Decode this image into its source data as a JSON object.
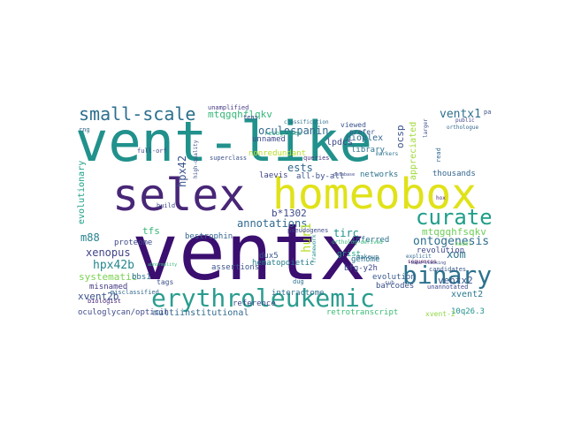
{
  "word_cloud": {
    "colormap": "viridis",
    "words": [
      {
        "text": "ventx",
        "color": "#3b0f70"
      },
      {
        "text": "vent-like",
        "color": "#21918c"
      },
      {
        "text": "homeobox",
        "color": "#e0e219"
      },
      {
        "text": "selex",
        "color": "#482677"
      },
      {
        "text": "erythroleukemic",
        "color": "#2a9d8f"
      },
      {
        "text": "binary",
        "color": "#2c728e"
      },
      {
        "text": "curated",
        "color": "#1f9e89"
      },
      {
        "text": "small-scale",
        "color": "#2c6f8e"
      },
      {
        "text": "ontogenesis",
        "color": "#2e6e8e"
      },
      {
        "text": "hpx42b",
        "color": "#24868e"
      },
      {
        "text": "ventx1",
        "color": "#2d708e"
      },
      {
        "text": "hpx42",
        "color": "#3b528b"
      },
      {
        "text": "mtqgqhflqkv",
        "color": "#35b779"
      },
      {
        "text": "mtqgqhfsqkv",
        "color": "#6ece58"
      },
      {
        "text": "oculospanin",
        "color": "#31688e"
      },
      {
        "text": "ests",
        "color": "#31688e"
      },
      {
        "text": "xenopus",
        "color": "#414487"
      },
      {
        "text": "annotations",
        "color": "#30698e"
      },
      {
        "text": "b*1302",
        "color": "#3e4a89"
      },
      {
        "text": "m88",
        "color": "#26828e"
      },
      {
        "text": "hur1",
        "color": "#b5de2b"
      },
      {
        "text": "tfs",
        "color": "#35b779"
      },
      {
        "text": "xom",
        "color": "#2c728e"
      },
      {
        "text": "ventx2",
        "color": "#38588c"
      },
      {
        "text": "systematic",
        "color": "#7ad151"
      },
      {
        "text": "evolutionary",
        "color": "#1fa187"
      },
      {
        "text": "xvent2b",
        "color": "#3b528b"
      },
      {
        "text": "xvent2",
        "color": "#2a788e"
      },
      {
        "text": "ocsp",
        "color": "#3b528b"
      },
      {
        "text": "appreciated",
        "color": "#9fda3a"
      },
      {
        "text": "bioplex",
        "color": "#31688e"
      },
      {
        "text": "library",
        "color": "#2c728e"
      },
      {
        "text": "unnamed",
        "color": "#3e4989"
      },
      {
        "text": "lpdcs",
        "color": "#3e4989"
      },
      {
        "text": "proteome",
        "color": "#3e4a89"
      },
      {
        "text": "thousands",
        "color": "#32648e"
      },
      {
        "text": "networks",
        "color": "#2c728e"
      },
      {
        "text": "laevis",
        "color": "#404688"
      },
      {
        "text": "all-by-all",
        "color": "#3b528b"
      },
      {
        "text": "revolution",
        "color": "#3f4788"
      },
      {
        "text": "genome",
        "color": "#2c728e"
      },
      {
        "text": "evolution",
        "color": "#38598c"
      },
      {
        "text": "barcodes",
        "color": "#3b528b"
      },
      {
        "text": "tirc",
        "color": "#21918c"
      },
      {
        "text": "dux5",
        "color": "#38598c"
      },
      {
        "text": "inferred",
        "color": "#2c728e"
      },
      {
        "text": "bestrophin",
        "color": "#32648e"
      },
      {
        "text": "misnamed",
        "color": "#443983"
      },
      {
        "text": "bbs1",
        "color": "#2d708e"
      },
      {
        "text": "reference",
        "color": "#3f4788"
      },
      {
        "text": "grist",
        "color": "#20a386"
      },
      {
        "text": "bfg-y2h",
        "color": "#3e4989"
      },
      {
        "text": "interactome",
        "color": "#2e6e8e"
      },
      {
        "text": "hematopoietic",
        "color": "#287d8e"
      },
      {
        "text": "assertions",
        "color": "#3a538b"
      },
      {
        "text": "multiinstitutional",
        "color": "#31688e"
      },
      {
        "text": "retrotranscript",
        "color": "#3bbb75"
      },
      {
        "text": "oculoglycan/opticin",
        "color": "#3e4989"
      },
      {
        "text": "10q26.3",
        "color": "#21918c"
      },
      {
        "text": "viewed",
        "color": "#3a548c"
      },
      {
        "text": "prefer",
        "color": "#39568c"
      },
      {
        "text": "nonredundant",
        "color": "#b8de29"
      },
      {
        "text": "unamplified",
        "color": "#443a83"
      },
      {
        "text": "superclass",
        "color": "#3b528b"
      },
      {
        "text": "recognizes",
        "color": "#25ab82"
      },
      {
        "text": "queries",
        "color": "#46337e"
      },
      {
        "text": "unannotated",
        "color": "#3e4989"
      },
      {
        "text": "candidates",
        "color": "#38598c"
      },
      {
        "text": "misclassified",
        "color": "#31688e"
      },
      {
        "text": "biologist",
        "color": "#482475"
      },
      {
        "text": "tags",
        "color": "#3b528b"
      },
      {
        "text": "build",
        "color": "#3e4989"
      },
      {
        "text": "pseudogenes",
        "color": "#3e4989"
      },
      {
        "text": "makeup",
        "color": "#2d708e"
      },
      {
        "text": "sequences",
        "color": "#440154"
      },
      {
        "text": "xvent-2",
        "color": "#8fd744"
      },
      {
        "text": "paint",
        "color": "#3b528b"
      },
      {
        "text": "tens",
        "color": "#414487"
      },
      {
        "text": "full-orf",
        "color": "#3e4989"
      },
      {
        "text": "high-quality",
        "color": "#3b528b"
      },
      {
        "text": "classification",
        "color": "#2c728e"
      },
      {
        "text": "orthologue",
        "color": "#31688e"
      },
      {
        "text": "ortholog-derived",
        "color": "#35b779"
      },
      {
        "text": "read",
        "color": "#31688e"
      },
      {
        "text": "larger",
        "color": "#3b528b"
      },
      {
        "text": "public",
        "color": "#404688"
      },
      {
        "text": "framework",
        "color": "#21918c"
      },
      {
        "text": "markers",
        "color": "#2c728e"
      },
      {
        "text": "base-stacking",
        "color": "#3e4989"
      },
      {
        "text": "explicit",
        "color": "#31688e"
      },
      {
        "text": "abnormality",
        "color": "#35b779"
      },
      {
        "text": "dug",
        "color": "#2c728e"
      },
      {
        "text": "hox",
        "color": "#481f70"
      },
      {
        "text": "model",
        "color": "#6ece58"
      },
      {
        "text": "rng",
        "color": "#31688e"
      },
      {
        "text": "sub",
        "color": "#3b528b"
      },
      {
        "text": "database",
        "color": "#3e4989"
      }
    ]
  }
}
